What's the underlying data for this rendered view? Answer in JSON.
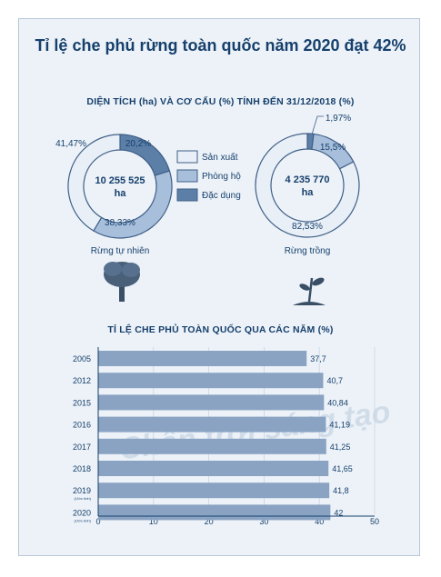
{
  "title": "Tỉ lệ che phủ rừng toàn quốc năm 2020 đạt 42%",
  "watermark": "Chân trời sáng tạo",
  "colors": {
    "san_xuat": "#e8eff7",
    "phong_ho": "#a8bfdc",
    "dac_dung": "#5c7fa8",
    "bar": "#8aa3c3",
    "stroke": "#3f5f86"
  },
  "chart_data": [
    {
      "type": "pie",
      "title": "DIỆN TÍCH (ha) VÀ CƠ CẤU (%) TÍNH ĐẾN 31/12/2018 (%)",
      "legend": [
        "Sản xuất",
        "Phòng hộ",
        "Đặc dụng"
      ],
      "charts": [
        {
          "name": "Rừng tự nhiên",
          "total_label": "10 255 525",
          "unit": "ha",
          "values": [
            41.47,
            38.33,
            20.2
          ],
          "labels": [
            "41,47%",
            "38,33%",
            "20,2%"
          ]
        },
        {
          "name": "Rừng trồng",
          "total_label": "4 235 770",
          "unit": "ha",
          "values": [
            82.53,
            15.5,
            1.97
          ],
          "labels": [
            "82,53%",
            "15,5%",
            "1,97%"
          ]
        }
      ]
    },
    {
      "type": "bar",
      "orientation": "horizontal",
      "title": "TỈ LỆ CHE PHỦ TOÀN QUỐC QUA CÁC NĂM (%)",
      "categories": [
        "2005",
        "2012",
        "2015",
        "2016",
        "2017",
        "2018",
        "2019",
        "2020"
      ],
      "category_notes": [
        "",
        "",
        "",
        "",
        "",
        "",
        "(Ước tính)",
        "(Ước tính)"
      ],
      "values": [
        37.7,
        40.7,
        40.84,
        41.19,
        41.25,
        41.65,
        41.8,
        42
      ],
      "value_labels": [
        "37,7",
        "40,7",
        "40,84",
        "41,19",
        "41,25",
        "41,65",
        "41,8",
        "42"
      ],
      "xlim": [
        0,
        50
      ],
      "xticks": [
        0,
        10,
        20,
        30,
        40,
        50
      ]
    }
  ]
}
